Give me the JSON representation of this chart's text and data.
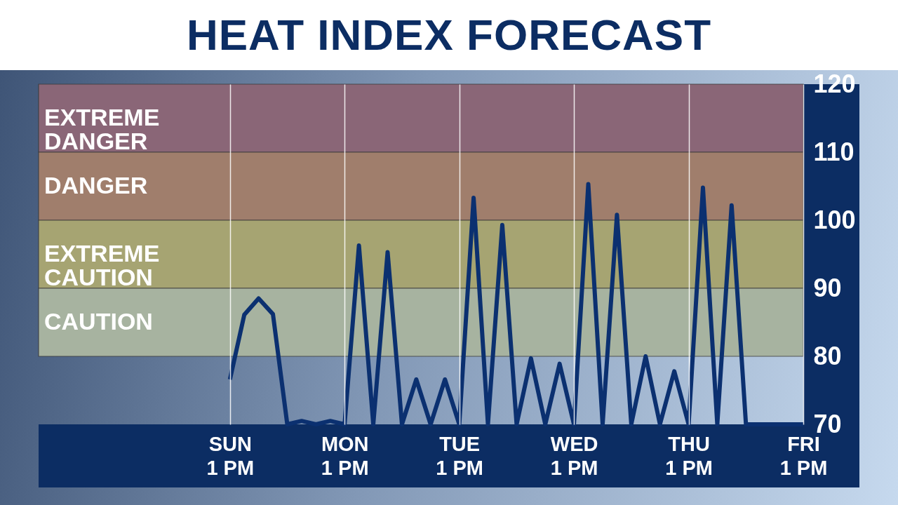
{
  "chart_data": {
    "type": "line",
    "title": "HEAT INDEX FORECAST",
    "categories": [
      null,
      null,
      null,
      null,
      null,
      null,
      null,
      null,
      null,
      null,
      null,
      null,
      null,
      "SUN 1 PM",
      null,
      null,
      null,
      null,
      null,
      null,
      null,
      "MON 1 PM",
      null,
      null,
      null,
      null,
      null,
      null,
      null,
      "TUE 1 PM",
      null,
      null,
      null,
      null,
      null,
      null,
      null,
      "WED 1 PM",
      null,
      null,
      null,
      null,
      null,
      null,
      null,
      "THU 1 PM",
      null,
      null,
      null,
      null,
      null,
      null,
      null,
      "FRI 1 PM"
    ],
    "series": [
      {
        "color": "#0b3070",
        "values": [
          null,
          null,
          null,
          null,
          null,
          null,
          null,
          null,
          null,
          null,
          null,
          null,
          null,
          76.6,
          86.1,
          88.5,
          86.2,
          70,
          70.5,
          70,
          70.5,
          70,
          96.3,
          70,
          95.3,
          70,
          76.6,
          70,
          76.6,
          70,
          103.3,
          70,
          99.3,
          70,
          79.7,
          70,
          78.9,
          70,
          105.3,
          70,
          100.8,
          70,
          80,
          70,
          77.8,
          70,
          104.8,
          70,
          102.2,
          70,
          70,
          70,
          70,
          70
        ]
      }
    ],
    "ylim": [
      70,
      120
    ],
    "yticks": [
      70,
      80,
      90,
      100,
      110,
      120
    ],
    "grid": "x",
    "bands": [
      {
        "axis": "y",
        "from": 110,
        "to": 120,
        "label": "EXTREME DANGER",
        "color": "#8a6677"
      },
      {
        "axis": "y",
        "from": 100,
        "to": 110,
        "label": "DANGER",
        "color": "#a07e6c"
      },
      {
        "axis": "y",
        "from": 90,
        "to": 100,
        "label": "EXTREME CAUTION",
        "color": "#a6a472"
      },
      {
        "axis": "y",
        "from": 80,
        "to": 90,
        "label": "CAUTION",
        "color": "#a7b3a0"
      }
    ]
  }
}
